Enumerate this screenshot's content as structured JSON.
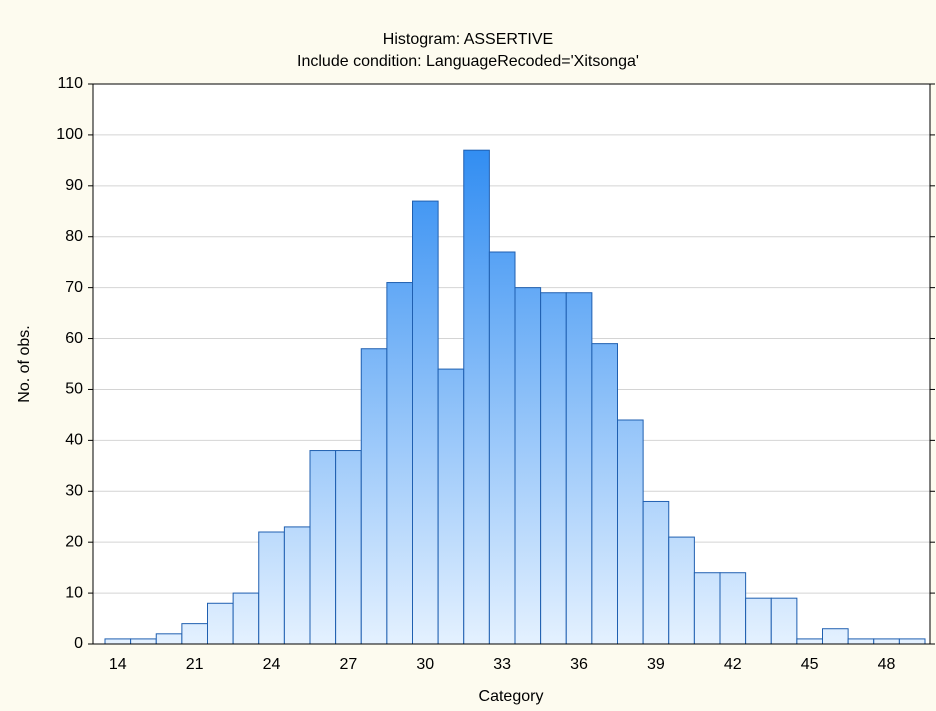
{
  "chart_data": {
    "type": "bar",
    "title": "Histogram: ASSERTIVE",
    "subtitle": "Include condition: LanguageRecoded='Xitsonga'",
    "x_label": "Category",
    "y_label": "No. of obs.",
    "categories": [
      "14",
      null,
      null,
      "21",
      null,
      null,
      "24",
      null,
      null,
      "27",
      null,
      null,
      "30",
      null,
      null,
      "33",
      null,
      null,
      "36",
      null,
      null,
      "39",
      null,
      null,
      "42",
      null,
      null,
      "45",
      null,
      null,
      "48",
      null
    ],
    "values": [
      1,
      1,
      2,
      4,
      8,
      10,
      22,
      23,
      38,
      38,
      58,
      71,
      87,
      54,
      97,
      77,
      70,
      69,
      69,
      59,
      44,
      28,
      21,
      14,
      14,
      9,
      9,
      1,
      3,
      1,
      1,
      1
    ],
    "color": "#2a8af0",
    "ylim": [
      0,
      110
    ],
    "yticks": [
      0,
      10,
      20,
      30,
      40,
      50,
      60,
      70,
      80,
      90,
      100,
      110
    ],
    "grid": true
  }
}
